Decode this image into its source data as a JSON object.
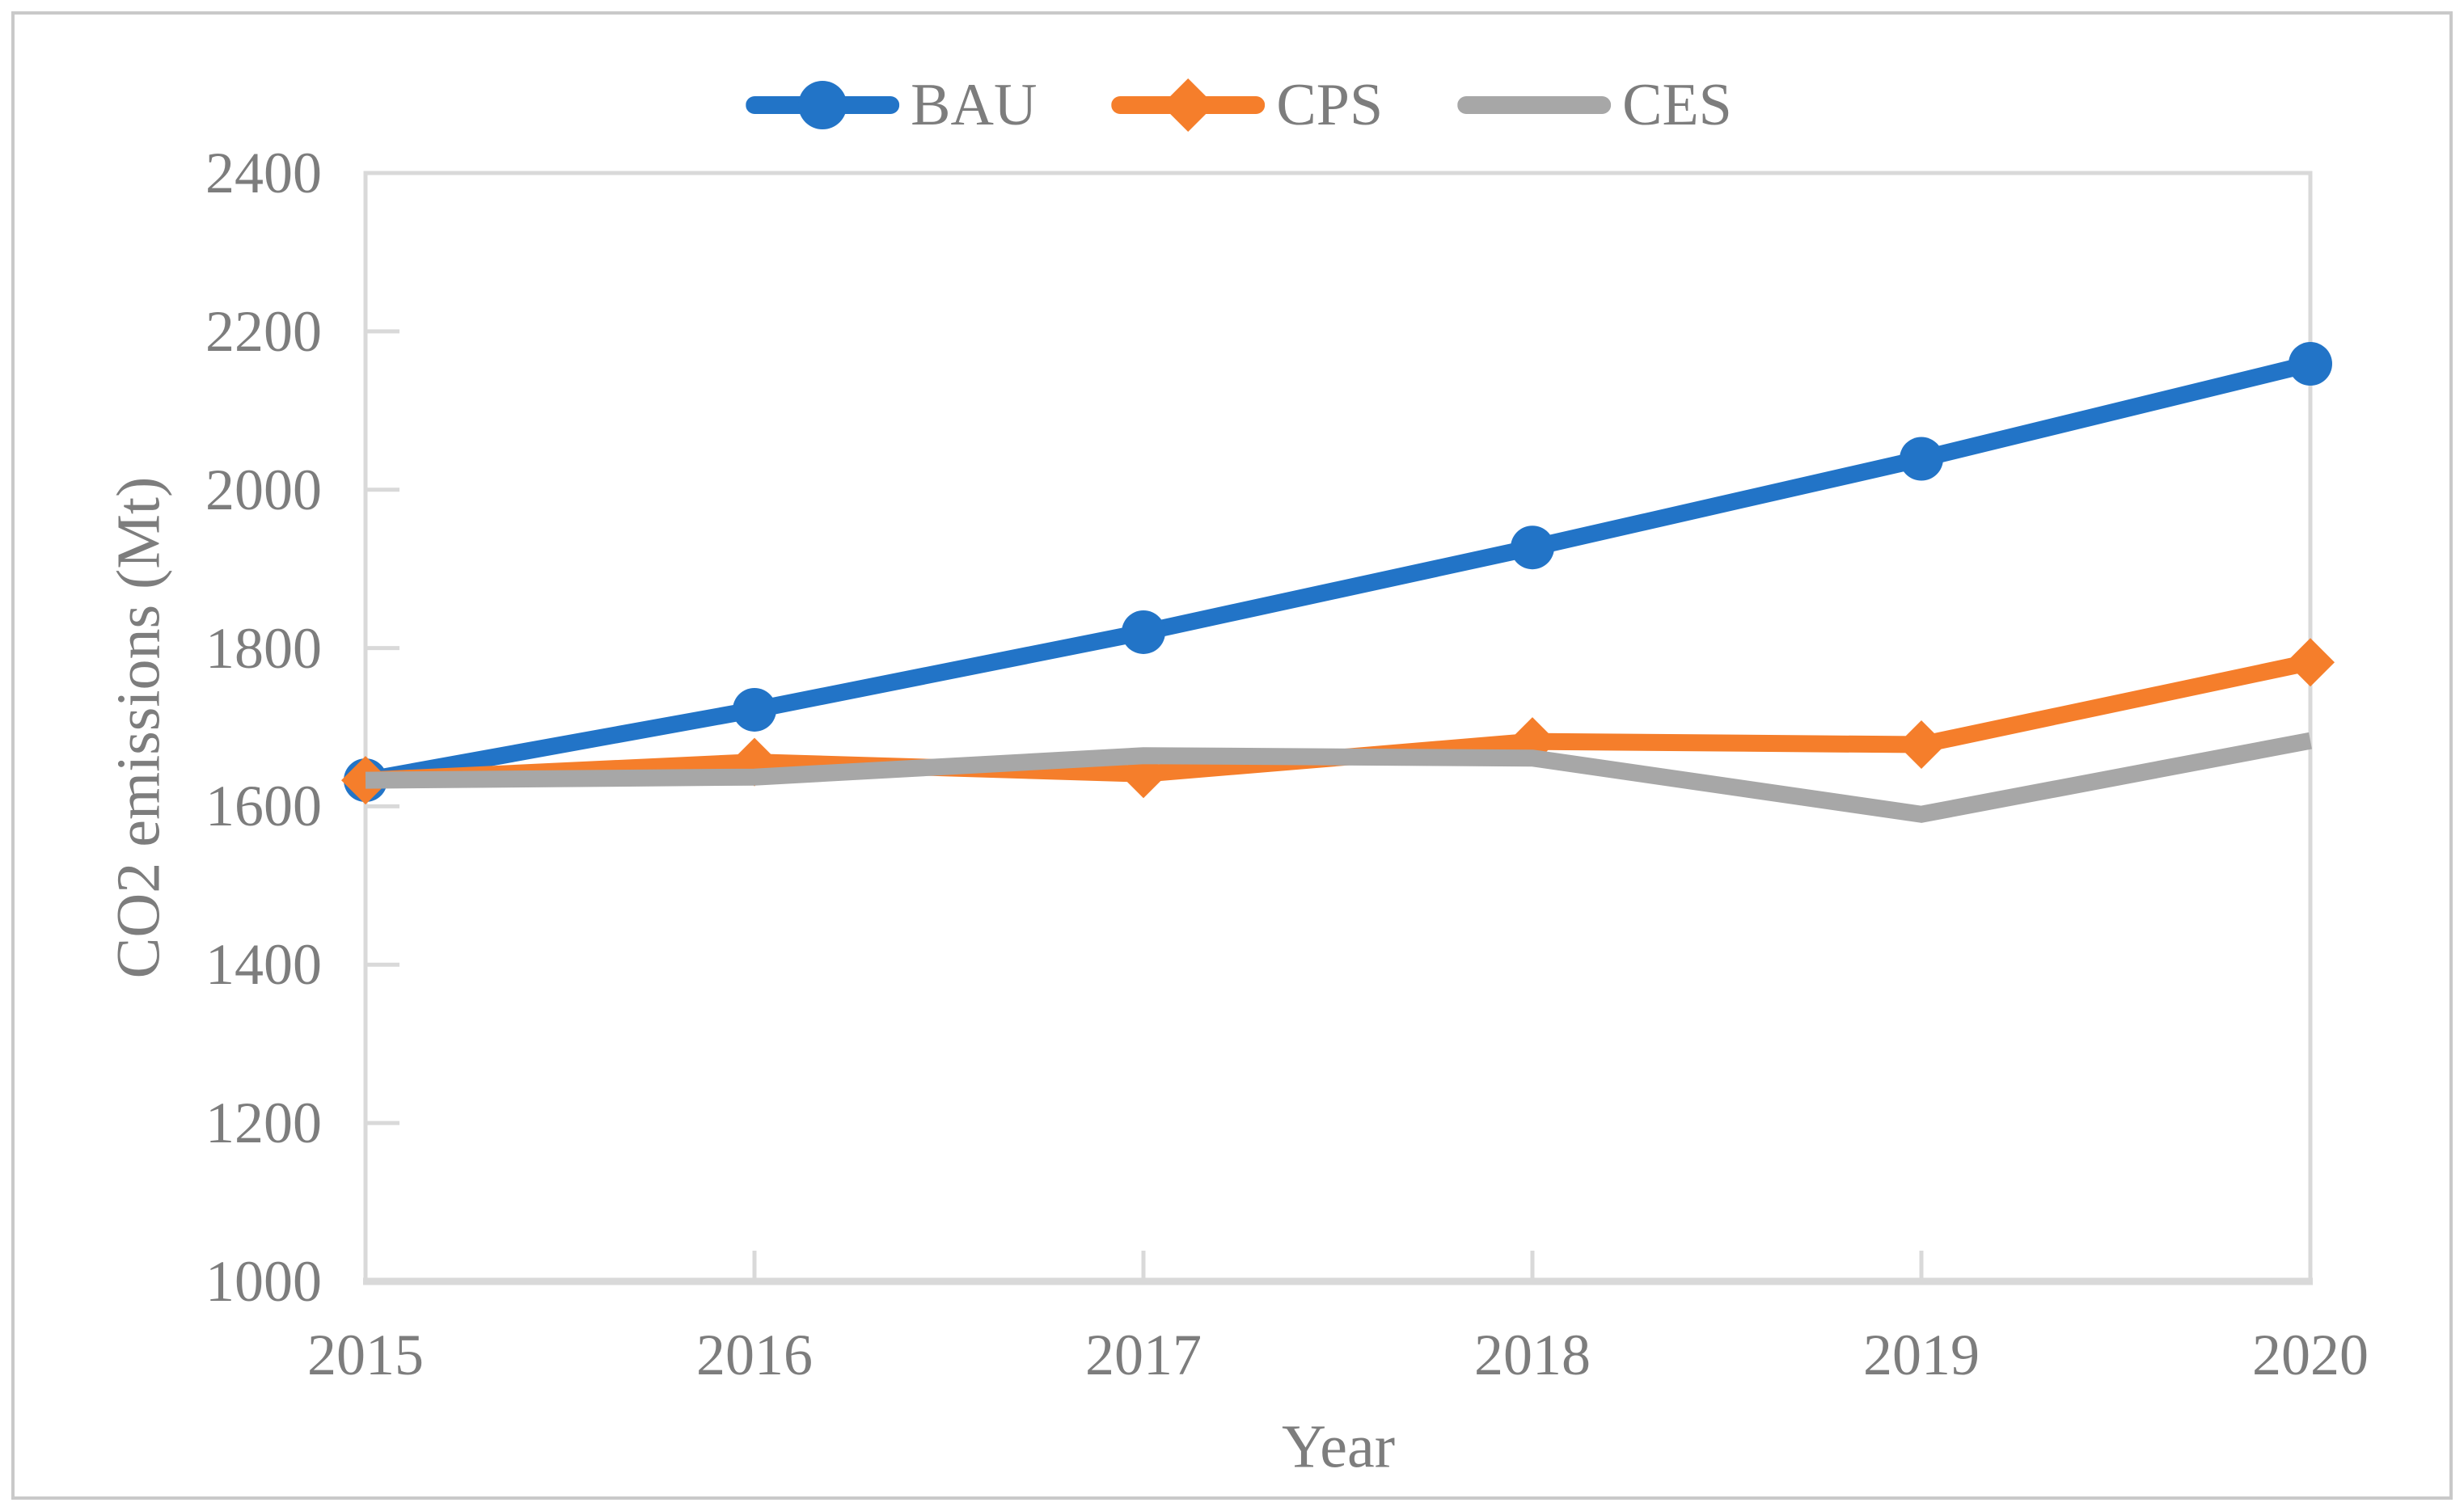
{
  "chart_data": {
    "type": "line",
    "title": "",
    "xlabel": "Year",
    "ylabel": "CO2 emissions (Mt)",
    "x_categories": [
      "2015",
      "2016",
      "2017",
      "2018",
      "2019",
      "2020"
    ],
    "y_tick_labels": [
      "1000",
      "1200",
      "1400",
      "1600",
      "1800",
      "2000",
      "2200",
      "2400"
    ],
    "ylim": [
      1000,
      2400
    ],
    "ytick_step": 200,
    "grid": false,
    "legend_position": "top-center",
    "series": [
      {
        "name": "BAU",
        "marker": "circle",
        "color": "#2274C7",
        "values": [
          1633,
          1722,
          1820,
          1927,
          2039,
          2159
        ]
      },
      {
        "name": "CPS",
        "marker": "diamond",
        "color": "#F57E2B",
        "values": [
          1633,
          1656,
          1641,
          1682,
          1678,
          1782
        ]
      },
      {
        "name": "CES",
        "marker": "none",
        "color": "#A7A7A7",
        "values": [
          1633,
          1637,
          1664,
          1661,
          1590,
          1683
        ]
      }
    ],
    "axis_color": "#D9D9D9",
    "label_color": "#7D7D7D",
    "frame_color": "#C9C9C9"
  }
}
